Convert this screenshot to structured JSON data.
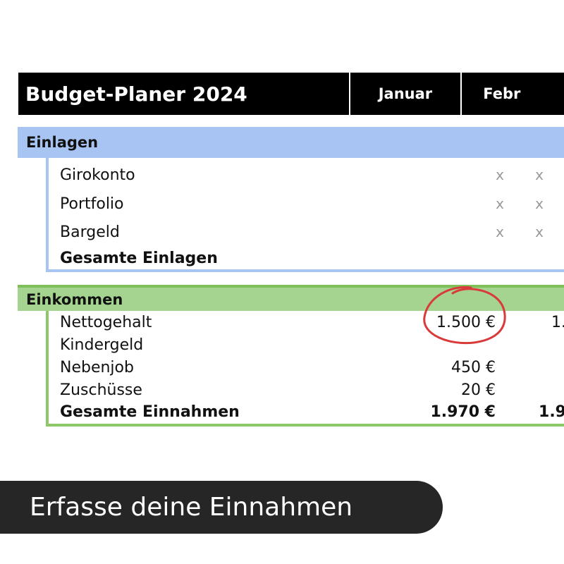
{
  "header": {
    "title": "Budget-Planer 2024",
    "months": [
      "Januar",
      "Febr"
    ]
  },
  "einlagen": {
    "heading": "Einlagen",
    "rows": [
      {
        "label": "Girokonto",
        "jan": "x",
        "feb": "x"
      },
      {
        "label": "Portfolio",
        "jan": "x",
        "feb": "x"
      },
      {
        "label": "Bargeld",
        "jan": "x",
        "feb": "x"
      }
    ],
    "total_label": "Gesamte Einlagen"
  },
  "einkommen": {
    "heading": "Einkommen",
    "rows": [
      {
        "label": "Nettogehalt",
        "jan": "1.500 €",
        "feb": "1."
      },
      {
        "label": "Kindergeld",
        "jan": "",
        "feb": ""
      },
      {
        "label": "Nebenjob",
        "jan": "450 €",
        "feb": ""
      },
      {
        "label": "Zuschüsse",
        "jan": "20 €",
        "feb": ""
      }
    ],
    "total": {
      "label": "Gesamte Einnahmen",
      "jan": "1.970 €",
      "feb": "1.9"
    }
  },
  "banner": {
    "text": "Erfasse deine Einnahmen"
  },
  "colors": {
    "header_bg": "#000000",
    "einlagen_accent": "#a7c4f2",
    "einkommen_accent": "#a5d490",
    "highlight_circle": "#d93a3a",
    "banner_bg": "#262626"
  }
}
